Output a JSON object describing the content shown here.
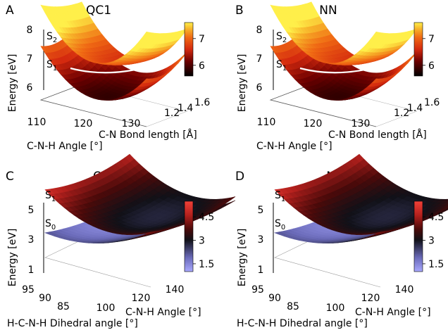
{
  "chart_data": [
    {
      "panel": "A",
      "title": "QC1",
      "type": "surface3d",
      "xlabel": "C-N-H Angle [°]",
      "ylabel": "C-N Bond length [Å]",
      "zlabel": "Energy [eV]",
      "xticks": [
        "110",
        "120",
        "130"
      ],
      "yticks": [
        "1.2",
        "1.4",
        "1.6"
      ],
      "zticks": [
        "6",
        "7",
        "8"
      ],
      "zlim": [
        5.5,
        8
      ],
      "surface_labels": [
        "S",
        "S"
      ],
      "surface_label_subs": [
        "2",
        "1"
      ],
      "colorbar": {
        "ticks": [
          "6",
          "7"
        ],
        "range": [
          5.6,
          7.6
        ],
        "colormap": "hot"
      }
    },
    {
      "panel": "B",
      "title": "NN",
      "type": "surface3d",
      "xlabel": "C-N-H Angle [°]",
      "ylabel": "C-N Bond length [Å]",
      "zlabel": "Energy [eV]",
      "xticks": [
        "110",
        "120",
        "130"
      ],
      "yticks": [
        "1.2",
        "1.4",
        "1.6"
      ],
      "zticks": [
        "6",
        "7",
        "8"
      ],
      "zlim": [
        5.5,
        8
      ],
      "surface_labels": [
        "S",
        "S"
      ],
      "surface_label_subs": [
        "2",
        "1"
      ],
      "colorbar": {
        "ticks": [
          "6",
          "7"
        ],
        "range": [
          5.6,
          7.6
        ],
        "colormap": "hot"
      }
    },
    {
      "panel": "C",
      "title": "QC1",
      "type": "surface3d",
      "xlabel": "H-C-N-H Dihedral angle [°]",
      "ylabel": "C-N-H Angle [°]",
      "zlabel": "Energy [eV]",
      "xticks": [
        "95",
        "90",
        "85"
      ],
      "yticks": [
        "100",
        "120",
        "140"
      ],
      "zticks": [
        "1",
        "3",
        "5"
      ],
      "zlim": [
        0.5,
        5.8
      ],
      "surface_labels": [
        "S",
        "S"
      ],
      "surface_label_subs": [
        "1",
        "0"
      ],
      "colorbar": {
        "ticks": [
          "1.5",
          "3",
          "4.5"
        ],
        "range": [
          1.0,
          5.5
        ],
        "colormap": "blue-black-red"
      }
    },
    {
      "panel": "D",
      "title": "NN",
      "type": "surface3d",
      "xlabel": "H-C-N-H Dihedral angle [°]",
      "ylabel": "C-N-H Angle [°]",
      "zlabel": "Energy [eV]",
      "xticks": [
        "95",
        "90",
        "85"
      ],
      "yticks": [
        "100",
        "120",
        "140"
      ],
      "zticks": [
        "1",
        "3",
        "5"
      ],
      "zlim": [
        0.5,
        5.8
      ],
      "surface_labels": [
        "S",
        "S"
      ],
      "surface_label_subs": [
        "1",
        "0"
      ],
      "colorbar": {
        "ticks": [
          "1.5",
          "3",
          "4.5"
        ],
        "range": [
          1.0,
          5.5
        ],
        "colormap": "blue-black-red"
      }
    }
  ]
}
